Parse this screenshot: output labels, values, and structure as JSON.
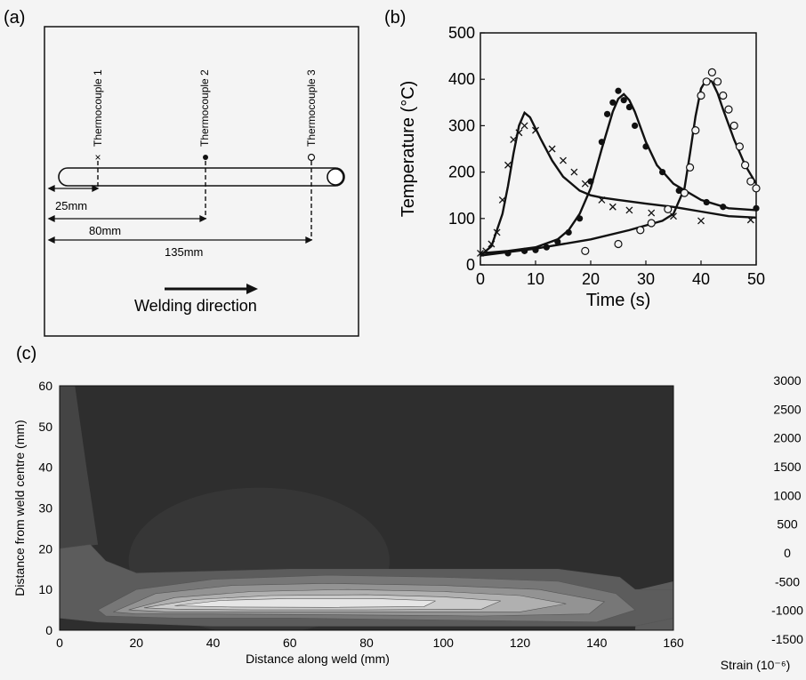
{
  "panels": {
    "a": "(a)",
    "b": "(b)",
    "c": "(c)"
  },
  "schematic": {
    "thermocouples": [
      "Thermocouple 1",
      "Thermocouple 2",
      "Thermocouple 3"
    ],
    "thermocouple_markers": [
      "cross",
      "filled-circle",
      "open-circle"
    ],
    "distances": [
      "25mm",
      "80mm",
      "135mm"
    ],
    "welding_direction": "Welding direction"
  },
  "colors": {
    "background": "#f4f4f4",
    "ink": "#111111",
    "contour_levels": [
      "#2e2e2e",
      "#444444",
      "#5c5c5c",
      "#777777",
      "#939393",
      "#b0b0b0",
      "#cccccc",
      "#e6e6e6"
    ]
  },
  "chart_data": [
    {
      "type": "scatter",
      "xlabel": "Time (s)",
      "ylabel": "Temperature (°C)",
      "xlim": [
        0,
        50
      ],
      "ylim": [
        0,
        500
      ],
      "xticks": [
        0,
        10,
        20,
        30,
        40,
        50
      ],
      "yticks": [
        0,
        100,
        200,
        300,
        400,
        500
      ],
      "grid": false,
      "series": [
        {
          "marker": "cross",
          "points": [
            [
              0,
              25
            ],
            [
              1,
              30
            ],
            [
              2,
              45
            ],
            [
              3,
              70
            ],
            [
              4,
              140
            ],
            [
              5,
              215
            ],
            [
              6,
              270
            ],
            [
              7,
              285
            ],
            [
              8,
              300
            ],
            [
              10,
              290
            ],
            [
              13,
              250
            ],
            [
              15,
              225
            ],
            [
              17,
              200
            ],
            [
              19,
              175
            ],
            [
              22,
              140
            ],
            [
              24,
              125
            ],
            [
              27,
              118
            ],
            [
              31,
              112
            ],
            [
              35,
              105
            ],
            [
              40,
              95
            ],
            [
              49,
              97
            ]
          ],
          "fit": [
            [
              0,
              20
            ],
            [
              2,
              40
            ],
            [
              4,
              110
            ],
            [
              5,
              170
            ],
            [
              6,
              240
            ],
            [
              7,
              300
            ],
            [
              8,
              328
            ],
            [
              9,
              318
            ],
            [
              11,
              270
            ],
            [
              13,
              225
            ],
            [
              15,
              190
            ],
            [
              18,
              160
            ],
            [
              20,
              150
            ],
            [
              22,
              145
            ],
            [
              25,
              140
            ],
            [
              30,
              132
            ],
            [
              35,
              125
            ],
            [
              40,
              115
            ],
            [
              45,
              105
            ],
            [
              50,
              102
            ]
          ]
        },
        {
          "marker": "filled-circle",
          "points": [
            [
              5,
              25
            ],
            [
              8,
              30
            ],
            [
              10,
              32
            ],
            [
              12,
              38
            ],
            [
              14,
              50
            ],
            [
              16,
              70
            ],
            [
              18,
              100
            ],
            [
              20,
              180
            ],
            [
              22,
              265
            ],
            [
              23,
              325
            ],
            [
              24,
              350
            ],
            [
              25,
              375
            ],
            [
              26,
              355
            ],
            [
              27,
              340
            ],
            [
              28,
              300
            ],
            [
              30,
              255
            ],
            [
              33,
              200
            ],
            [
              36,
              160
            ],
            [
              41,
              135
            ],
            [
              44,
              125
            ],
            [
              50,
              122
            ]
          ],
          "fit": [
            [
              0,
              25
            ],
            [
              5,
              30
            ],
            [
              10,
              38
            ],
            [
              14,
              55
            ],
            [
              16,
              75
            ],
            [
              18,
              110
            ],
            [
              20,
              165
            ],
            [
              22,
              250
            ],
            [
              24,
              330
            ],
            [
              25,
              358
            ],
            [
              26,
              368
            ],
            [
              27,
              355
            ],
            [
              28,
              330
            ],
            [
              30,
              265
            ],
            [
              32,
              215
            ],
            [
              35,
              175
            ],
            [
              40,
              140
            ],
            [
              45,
              122
            ],
            [
              50,
              118
            ]
          ]
        },
        {
          "marker": "open-circle",
          "points": [
            [
              19,
              30
            ],
            [
              25,
              45
            ],
            [
              29,
              75
            ],
            [
              31,
              90
            ],
            [
              34,
              120
            ],
            [
              37,
              155
            ],
            [
              38,
              210
            ],
            [
              39,
              290
            ],
            [
              40,
              365
            ],
            [
              41,
              395
            ],
            [
              42,
              415
            ],
            [
              43,
              395
            ],
            [
              44,
              365
            ],
            [
              45,
              335
            ],
            [
              46,
              300
            ],
            [
              47,
              255
            ],
            [
              48,
              215
            ],
            [
              49,
              180
            ],
            [
              50,
              165
            ]
          ],
          "fit": [
            [
              0,
              20
            ],
            [
              10,
              35
            ],
            [
              20,
              55
            ],
            [
              27,
              75
            ],
            [
              30,
              85
            ],
            [
              33,
              95
            ],
            [
              35,
              110
            ],
            [
              37,
              165
            ],
            [
              38,
              240
            ],
            [
              39,
              320
            ],
            [
              40,
              380
            ],
            [
              41,
              400
            ],
            [
              42,
              395
            ],
            [
              43,
              370
            ],
            [
              44,
              335
            ],
            [
              46,
              270
            ],
            [
              48,
              215
            ],
            [
              50,
              175
            ]
          ]
        }
      ]
    },
    {
      "type": "heatmap",
      "xlabel": "Distance along weld (mm)",
      "ylabel": "Distance from weld centre (mm)",
      "xlim": [
        0,
        160
      ],
      "ylim": [
        0,
        60
      ],
      "xticks": [
        0,
        20,
        40,
        60,
        80,
        100,
        120,
        140,
        160
      ],
      "yticks": [
        0,
        10,
        20,
        30,
        40,
        50,
        60
      ],
      "colorbar_ticks": [
        "3000",
        "2500",
        "2000",
        "1500",
        "1000",
        "500",
        "0",
        "-500",
        "-1000",
        "-1500"
      ],
      "colorbar_label": "Strain (10⁻⁶)",
      "contours": [
        {
          "level": 2,
          "points": [
            [
              0,
              20
            ],
            [
              8,
              21
            ],
            [
              12,
              17
            ],
            [
              20,
              14
            ],
            [
              60,
              15
            ],
            [
              100,
              15
            ],
            [
              130,
              15
            ],
            [
              146,
              13
            ],
            [
              150,
              10
            ],
            [
              160,
              10
            ],
            [
              160,
              3
            ],
            [
              150,
              1
            ],
            [
              100,
              1
            ],
            [
              40,
              1
            ],
            [
              10,
              2
            ],
            [
              0,
              3
            ]
          ]
        },
        {
          "level": 3,
          "points": [
            [
              10,
              5
            ],
            [
              20,
              10
            ],
            [
              40,
              12.5
            ],
            [
              70,
              13.5
            ],
            [
              100,
              13
            ],
            [
              130,
              12
            ],
            [
              145,
              9
            ],
            [
              150,
              5
            ],
            [
              140,
              2
            ],
            [
              100,
              2.5
            ],
            [
              60,
              3
            ],
            [
              30,
              3
            ],
            [
              12,
              3.5
            ]
          ]
        },
        {
          "level": 4,
          "points": [
            [
              14,
              4.5
            ],
            [
              25,
              9
            ],
            [
              45,
              11
            ],
            [
              70,
              11.5
            ],
            [
              100,
              11
            ],
            [
              125,
              10
            ],
            [
              142,
              7
            ],
            [
              138,
              4
            ],
            [
              110,
              3.5
            ],
            [
              70,
              3.8
            ],
            [
              40,
              4
            ],
            [
              20,
              4
            ]
          ]
        },
        {
          "level": 5,
          "points": [
            [
              18,
              5
            ],
            [
              30,
              8
            ],
            [
              50,
              9.5
            ],
            [
              75,
              10
            ],
            [
              100,
              9.5
            ],
            [
              120,
              8.5
            ],
            [
              132,
              6.5
            ],
            [
              120,
              4.5
            ],
            [
              90,
              4.5
            ],
            [
              55,
              4.5
            ],
            [
              28,
              4.5
            ]
          ]
        },
        {
          "level": 6,
          "points": [
            [
              22,
              5.5
            ],
            [
              35,
              7.5
            ],
            [
              55,
              8.5
            ],
            [
              80,
              8.7
            ],
            [
              100,
              8.2
            ],
            [
              115,
              7.2
            ],
            [
              110,
              5.2
            ],
            [
              80,
              5
            ],
            [
              50,
              5
            ],
            [
              30,
              5.2
            ]
          ]
        },
        {
          "level": 7,
          "points": [
            [
              30,
              6
            ],
            [
              42,
              7.3
            ],
            [
              60,
              7.8
            ],
            [
              82,
              7.8
            ],
            [
              98,
              7.2
            ],
            [
              95,
              5.8
            ],
            [
              70,
              5.6
            ],
            [
              45,
              5.7
            ]
          ]
        }
      ]
    }
  ]
}
